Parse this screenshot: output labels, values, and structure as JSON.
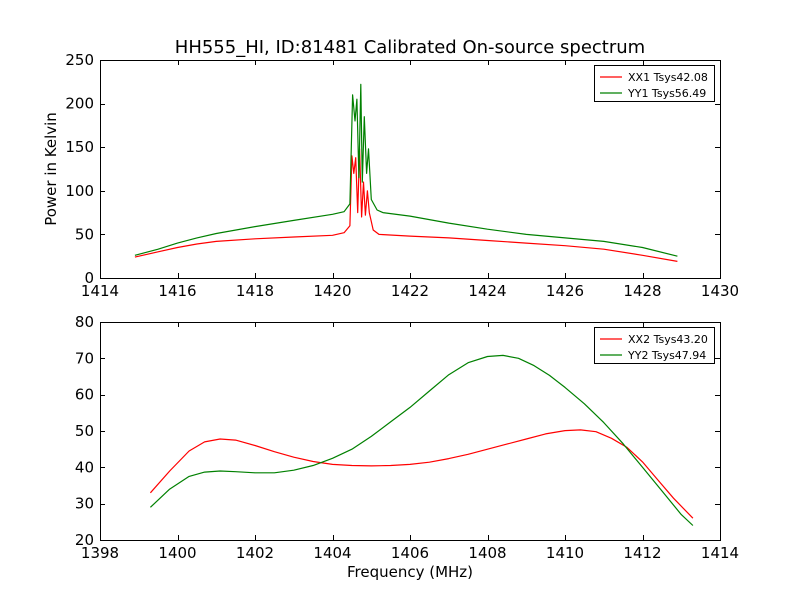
{
  "colors": {
    "xx": "#ff0000",
    "yy": "#008000"
  },
  "chart_data": [
    {
      "type": "line",
      "title": "HH555_HI, ID:81481 Calibrated On-source spectrum",
      "xlabel": "",
      "ylabel": "Power in Kelvin",
      "xlim": [
        1414,
        1430
      ],
      "ylim": [
        0,
        250
      ],
      "xticks": [
        1414,
        1416,
        1418,
        1420,
        1422,
        1424,
        1426,
        1428,
        1430
      ],
      "yticks": [
        0,
        50,
        100,
        150,
        200,
        250
      ],
      "legend_position": "top-right",
      "grid": false,
      "series": [
        {
          "name": "XX1 Tsys42.08",
          "color": "#ff0000",
          "x": [
            1414.9,
            1415.5,
            1416,
            1416.5,
            1417,
            1418,
            1419,
            1420,
            1420.3,
            1420.45,
            1420.5,
            1420.55,
            1420.6,
            1420.65,
            1420.7,
            1420.75,
            1420.8,
            1420.85,
            1420.9,
            1420.95,
            1421.05,
            1421.2,
            1422,
            1423,
            1424,
            1425,
            1426,
            1427,
            1428,
            1428.9
          ],
          "y": [
            24,
            30,
            35,
            39,
            42,
            45,
            47,
            49,
            52,
            60,
            140,
            120,
            138,
            75,
            148,
            70,
            110,
            72,
            100,
            75,
            55,
            50,
            48,
            46,
            43,
            40,
            37,
            33,
            26,
            19
          ]
        },
        {
          "name": "YY1 Tsys56.49",
          "color": "#008000",
          "x": [
            1414.9,
            1415.5,
            1416,
            1416.5,
            1417,
            1418,
            1419,
            1420,
            1420.3,
            1420.45,
            1420.52,
            1420.58,
            1420.63,
            1420.68,
            1420.73,
            1420.77,
            1420.82,
            1420.88,
            1420.93,
            1421.0,
            1421.15,
            1421.3,
            1422,
            1423,
            1424,
            1425,
            1426,
            1427,
            1428,
            1428.9
          ],
          "y": [
            26,
            33,
            40,
            46,
            51,
            59,
            66,
            73,
            76,
            85,
            210,
            180,
            205,
            115,
            222,
            110,
            185,
            120,
            148,
            90,
            78,
            75,
            71,
            63,
            56,
            50,
            46,
            42,
            35,
            25
          ]
        }
      ]
    },
    {
      "type": "line",
      "title": "",
      "xlabel": "Frequency (MHz)",
      "ylabel": "",
      "xlim": [
        1398,
        1414
      ],
      "ylim": [
        20,
        80
      ],
      "xticks": [
        1398,
        1400,
        1402,
        1404,
        1406,
        1408,
        1410,
        1412,
        1414
      ],
      "yticks": [
        20,
        30,
        40,
        50,
        60,
        70,
        80
      ],
      "legend_position": "top-right",
      "grid": false,
      "series": [
        {
          "name": "XX2 Tsys43.20",
          "color": "#ff0000",
          "x": [
            1399.3,
            1399.8,
            1400.3,
            1400.7,
            1401.1,
            1401.5,
            1402,
            1402.5,
            1403,
            1403.5,
            1404,
            1404.5,
            1405,
            1405.5,
            1406,
            1406.5,
            1407,
            1407.5,
            1408,
            1408.5,
            1409,
            1409.5,
            1410,
            1410.4,
            1410.8,
            1411.2,
            1411.6,
            1412,
            1412.4,
            1412.8,
            1413.3
          ],
          "y": [
            33,
            39,
            44.5,
            47,
            47.8,
            47.5,
            46,
            44.3,
            42.8,
            41.6,
            40.8,
            40.5,
            40.4,
            40.5,
            40.8,
            41.4,
            42.4,
            43.6,
            45,
            46.4,
            47.8,
            49.2,
            50.1,
            50.3,
            49.8,
            48,
            45.5,
            41.5,
            36.5,
            31.5,
            26
          ]
        },
        {
          "name": "YY2 Tsys47.94",
          "color": "#008000",
          "x": [
            1399.3,
            1399.8,
            1400.3,
            1400.7,
            1401.1,
            1401.5,
            1402,
            1402.5,
            1403,
            1403.5,
            1404,
            1404.5,
            1405,
            1405.5,
            1406,
            1406.5,
            1407,
            1407.5,
            1408,
            1408.4,
            1408.8,
            1409.2,
            1409.6,
            1410,
            1410.5,
            1411,
            1411.5,
            1412,
            1412.5,
            1413,
            1413.3
          ],
          "y": [
            29,
            34,
            37.5,
            38.7,
            39,
            38.8,
            38.5,
            38.5,
            39.2,
            40.5,
            42.5,
            45,
            48.5,
            52.5,
            56.5,
            61,
            65.5,
            68.8,
            70.5,
            70.8,
            70,
            68,
            65.3,
            62,
            57.5,
            52.3,
            46.5,
            40,
            33.5,
            27,
            24
          ]
        }
      ]
    }
  ]
}
